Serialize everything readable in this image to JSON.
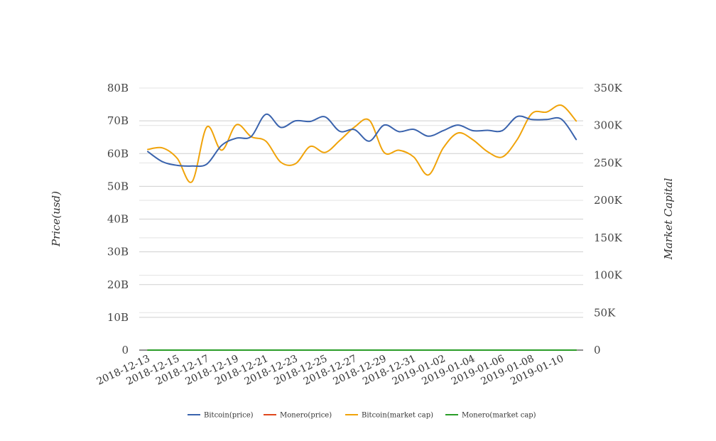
{
  "chart_data": {
    "type": "line",
    "ylabel_left": "Price(usd)",
    "ylabel_right": "Market Capital",
    "y_left": {
      "min": 0,
      "max": 80000000000,
      "tick_values": [
        0,
        10000000000,
        20000000000,
        30000000000,
        40000000000,
        50000000000,
        60000000000,
        70000000000,
        80000000000
      ],
      "tick_labels": [
        "0",
        "10B",
        "20B",
        "30B",
        "40B",
        "50B",
        "60B",
        "70B",
        "80B"
      ]
    },
    "y_right": {
      "min": 0,
      "max": 350000,
      "tick_values": [
        0,
        50000,
        100000,
        150000,
        200000,
        250000,
        300000,
        350000
      ],
      "tick_labels": [
        "0",
        "50K",
        "100K",
        "150K",
        "200K",
        "250K",
        "300K",
        "350K"
      ]
    },
    "x_tick_labels": [
      "2018-12-13",
      "2018-12-15",
      "2018-12-17",
      "2018-12-19",
      "2018-12-21",
      "2018-12-23",
      "2018-12-25",
      "2018-12-27",
      "2018-12-29",
      "2018-12-31",
      "2019-01-02",
      "2019-01-04",
      "2019-01-06",
      "2019-01-08",
      "2019-01-10"
    ],
    "x": [
      "2018-12-13",
      "2018-12-14",
      "2018-12-15",
      "2018-12-16",
      "2018-12-17",
      "2018-12-18",
      "2018-12-19",
      "2018-12-20",
      "2018-12-21",
      "2018-12-22",
      "2018-12-23",
      "2018-12-24",
      "2018-12-25",
      "2018-12-26",
      "2018-12-27",
      "2018-12-28",
      "2018-12-29",
      "2018-12-30",
      "2018-12-31",
      "2019-01-01",
      "2019-01-02",
      "2019-01-03",
      "2019-01-04",
      "2019-01-05",
      "2019-01-06",
      "2019-01-07",
      "2019-01-08",
      "2019-01-09",
      "2019-01-10",
      "2019-01-11"
    ],
    "series": [
      {
        "name": "Bitcoin(price)",
        "axis": "left",
        "color": "#3a63ad",
        "values": [
          60600000000,
          57500000000,
          56400000000,
          56200000000,
          56800000000,
          62500000000,
          64700000000,
          65200000000,
          72000000000,
          68000000000,
          70000000000,
          69800000000,
          71200000000,
          66800000000,
          67300000000,
          63800000000,
          68700000000,
          66700000000,
          67400000000,
          65300000000,
          67000000000,
          68700000000,
          67000000000,
          67100000000,
          67000000000,
          71300000000,
          70400000000,
          70400000000,
          70500000000,
          64300000000
        ]
      },
      {
        "name": "Monero(price)",
        "axis": "left",
        "color": "#e0471c",
        "values": [
          80,
          81,
          80,
          82,
          83,
          86,
          88,
          87,
          86,
          85,
          84,
          83,
          82,
          81,
          80,
          79,
          78,
          77,
          77,
          76,
          75,
          74,
          73,
          72,
          71,
          70,
          70,
          69,
          68,
          67
        ]
      },
      {
        "name": "Bitcoin(market cap)",
        "axis": "right",
        "color": "#f0a30a",
        "values": [
          268000,
          270000,
          256000,
          225000,
          298000,
          267000,
          301000,
          285000,
          279000,
          251000,
          249000,
          272000,
          264000,
          280000,
          298000,
          307000,
          264000,
          267000,
          258000,
          234000,
          270000,
          290000,
          281000,
          265000,
          258000,
          281000,
          316000,
          318000,
          327000,
          306000
        ]
      },
      {
        "name": "Monero(market cap)",
        "axis": "right",
        "color": "#2a9d28",
        "values": [
          2,
          2,
          2,
          2,
          2,
          2,
          2,
          2,
          2,
          2,
          2,
          2,
          2,
          2,
          2,
          2,
          2,
          2,
          2,
          2,
          2,
          2,
          2,
          2,
          2,
          2,
          2,
          2,
          2,
          2
        ]
      }
    ],
    "legend_position": "bottom"
  }
}
